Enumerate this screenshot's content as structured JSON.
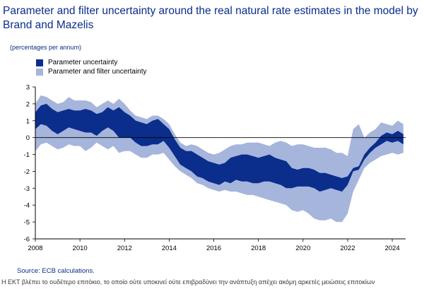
{
  "header": {
    "title": "Parameter and filter uncertainty around the real natural rate estimates in the model by Brand and Mazelis"
  },
  "colors": {
    "title": "#0b2d8c",
    "inner_band": "#0b2d8c",
    "outer_band": "#a5b5dc",
    "zero_line": "#000000"
  },
  "chart_data": {
    "type": "area",
    "title": "Parameter and filter uncertainty around the real natural rate estimates in the model by Brand and Mazelis",
    "subtitle": "(percentages per annum)",
    "xlabel": "",
    "ylabel": "",
    "xlim": [
      2008,
      2024.6
    ],
    "ylim": [
      -6,
      3
    ],
    "x_ticks": [
      2008,
      2010,
      2012,
      2014,
      2016,
      2018,
      2020,
      2022,
      2024
    ],
    "y_ticks": [
      3,
      2,
      1,
      0,
      -1,
      -2,
      -3,
      -4,
      -5,
      -6
    ],
    "legend": "top-left",
    "grid": false,
    "legend_entries": [
      "Parameter uncertainty",
      "Parameter and filter uncertainty"
    ],
    "series": [
      {
        "name": "Parameter and filter uncertainty",
        "x": [
          2008.0,
          2008.25,
          2008.5,
          2008.75,
          2009.0,
          2009.25,
          2009.5,
          2009.75,
          2010.0,
          2010.25,
          2010.5,
          2010.75,
          2011.0,
          2011.25,
          2011.5,
          2011.75,
          2012.0,
          2012.25,
          2012.5,
          2012.75,
          2013.0,
          2013.25,
          2013.5,
          2013.75,
          2014.0,
          2014.25,
          2014.5,
          2014.75,
          2015.0,
          2015.25,
          2015.5,
          2015.75,
          2016.0,
          2016.25,
          2016.5,
          2016.75,
          2017.0,
          2017.25,
          2017.5,
          2017.75,
          2018.0,
          2018.25,
          2018.5,
          2018.75,
          2019.0,
          2019.25,
          2019.5,
          2019.75,
          2020.0,
          2020.25,
          2020.5,
          2020.75,
          2021.0,
          2021.25,
          2021.5,
          2021.75,
          2022.0,
          2022.25,
          2022.5,
          2022.75,
          2023.0,
          2023.25,
          2023.5,
          2023.75,
          2024.0,
          2024.25,
          2024.5
        ],
        "upper": [
          2.0,
          2.5,
          2.4,
          2.2,
          2.0,
          2.1,
          2.4,
          2.2,
          2.2,
          2.2,
          2.1,
          1.8,
          2.0,
          2.2,
          2.0,
          2.3,
          2.0,
          1.6,
          1.3,
          1.2,
          1.1,
          1.3,
          1.3,
          1.1,
          0.8,
          0.2,
          -0.3,
          -0.5,
          -0.4,
          -0.5,
          -0.7,
          -0.9,
          -1.0,
          -0.9,
          -0.7,
          -0.5,
          -0.4,
          -0.4,
          -0.3,
          -0.3,
          -0.3,
          -0.4,
          -0.5,
          -0.3,
          -0.2,
          -0.3,
          -0.5,
          -0.4,
          -0.4,
          -0.5,
          -0.6,
          -0.6,
          -0.6,
          -0.7,
          -0.9,
          -0.9,
          -1.1,
          0.5,
          0.8,
          0.0,
          0.3,
          0.5,
          0.9,
          0.8,
          0.7,
          1.0,
          0.8
        ],
        "lower": [
          -0.8,
          -0.4,
          -0.3,
          -0.5,
          -0.7,
          -0.6,
          -0.4,
          -0.5,
          -0.5,
          -0.8,
          -0.6,
          -0.3,
          -0.5,
          -0.7,
          -0.5,
          -0.9,
          -0.8,
          -0.8,
          -1.0,
          -1.2,
          -1.2,
          -1.0,
          -1.0,
          -0.9,
          -1.3,
          -1.7,
          -2.0,
          -2.2,
          -2.4,
          -2.7,
          -2.8,
          -3.0,
          -3.1,
          -3.2,
          -3.1,
          -3.2,
          -3.2,
          -3.3,
          -3.4,
          -3.4,
          -3.5,
          -3.6,
          -3.7,
          -3.8,
          -3.9,
          -4.0,
          -4.3,
          -4.4,
          -4.3,
          -4.5,
          -4.8,
          -4.9,
          -4.9,
          -4.8,
          -5.0,
          -5.0,
          -4.5,
          -3.2,
          -2.5,
          -1.8,
          -1.5,
          -1.3,
          -1.1,
          -1.0,
          -0.9,
          -1.0,
          -0.9
        ]
      },
      {
        "name": "Parameter uncertainty",
        "x": [
          2008.0,
          2008.25,
          2008.5,
          2008.75,
          2009.0,
          2009.25,
          2009.5,
          2009.75,
          2010.0,
          2010.25,
          2010.5,
          2010.75,
          2011.0,
          2011.25,
          2011.5,
          2011.75,
          2012.0,
          2012.25,
          2012.5,
          2012.75,
          2013.0,
          2013.25,
          2013.5,
          2013.75,
          2014.0,
          2014.25,
          2014.5,
          2014.75,
          2015.0,
          2015.25,
          2015.5,
          2015.75,
          2016.0,
          2016.25,
          2016.5,
          2016.75,
          2017.0,
          2017.25,
          2017.5,
          2017.75,
          2018.0,
          2018.25,
          2018.5,
          2018.75,
          2019.0,
          2019.25,
          2019.5,
          2019.75,
          2020.0,
          2020.25,
          2020.5,
          2020.75,
          2021.0,
          2021.25,
          2021.5,
          2021.75,
          2022.0,
          2022.25,
          2022.5,
          2022.75,
          2023.0,
          2023.25,
          2023.5,
          2023.75,
          2024.0,
          2024.25,
          2024.5
        ],
        "upper": [
          1.5,
          1.9,
          2.0,
          1.7,
          1.5,
          1.6,
          1.7,
          1.6,
          1.6,
          1.7,
          1.6,
          1.4,
          1.5,
          1.8,
          1.6,
          1.8,
          1.5,
          1.3,
          1.0,
          0.9,
          0.8,
          1.0,
          1.1,
          0.8,
          0.5,
          -0.1,
          -0.6,
          -0.8,
          -0.8,
          -1.0,
          -1.2,
          -1.4,
          -1.5,
          -1.6,
          -1.5,
          -1.2,
          -1.1,
          -1.0,
          -1.0,
          -1.1,
          -1.2,
          -1.1,
          -1.0,
          -1.2,
          -1.3,
          -1.4,
          -1.8,
          -1.9,
          -1.8,
          -1.8,
          -1.9,
          -2.1,
          -2.1,
          -2.2,
          -2.3,
          -2.4,
          -2.3,
          -1.8,
          -1.7,
          -1.0,
          -0.6,
          -0.3,
          0.1,
          0.3,
          0.2,
          0.4,
          0.2
        ],
        "lower": [
          0.5,
          0.8,
          0.7,
          0.4,
          0.2,
          0.4,
          0.6,
          0.5,
          0.4,
          0.3,
          0.3,
          0.1,
          0.4,
          0.6,
          0.4,
          0.0,
          0.0,
          0.0,
          -0.3,
          -0.5,
          -0.5,
          -0.4,
          -0.4,
          -0.2,
          -0.6,
          -1.1,
          -1.6,
          -1.8,
          -2.0,
          -2.3,
          -2.4,
          -2.6,
          -2.7,
          -2.8,
          -2.6,
          -2.7,
          -2.5,
          -2.6,
          -2.6,
          -2.7,
          -2.7,
          -2.6,
          -2.6,
          -2.7,
          -2.8,
          -3.0,
          -3.0,
          -2.9,
          -2.9,
          -2.9,
          -3.0,
          -3.2,
          -3.1,
          -3.0,
          -3.1,
          -3.2,
          -2.8,
          -2.0,
          -1.9,
          -1.3,
          -0.9,
          -0.6,
          -0.4,
          -0.2,
          -0.3,
          -0.2,
          -0.4
        ]
      }
    ]
  },
  "footer": {
    "source": "Source: ECB calculations.",
    "caption": "Η ΕΚΤ βλέπει το ουδέτερο επιτόκιο, το οποίο ούτε υποκινεί ούτε επιβραδύνει την ανάπτυξη απέχει ακόμη αρκετές μειώσεις επιτοκίων"
  }
}
